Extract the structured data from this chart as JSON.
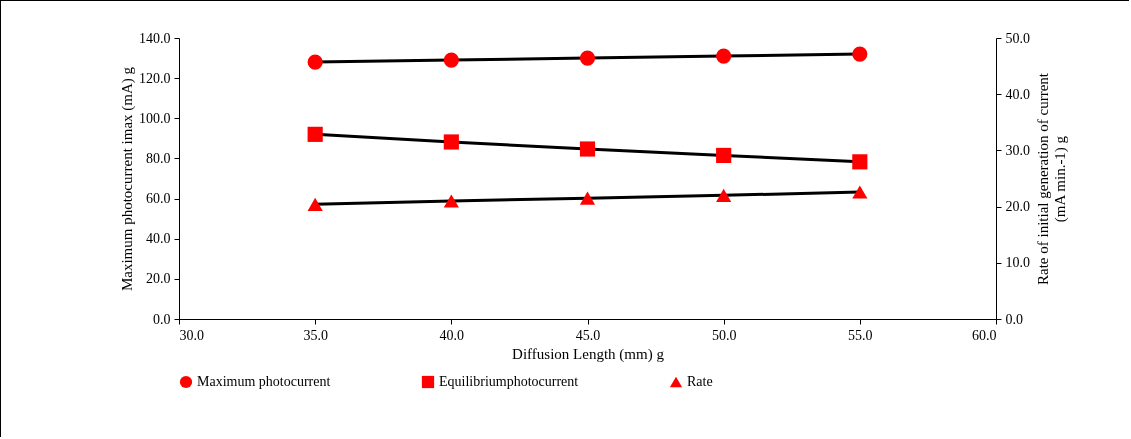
{
  "chart_data": {
    "type": "line",
    "xlabel": "Diffusion Length (mm) g",
    "ylabel": "Maximum photocurrent imax (mA) g",
    "y2label": "Rate of initial generation of current\n(mA min.-1) g",
    "x": [
      35,
      40,
      45,
      50,
      55
    ],
    "series": [
      {
        "name": "Maximum photocurrent",
        "color": "#ff0000",
        "marker": "circle",
        "values": [
          128,
          129,
          130,
          131,
          132
        ]
      },
      {
        "name": "Equilibriumphotocurrent",
        "color": "#ff0000",
        "marker": "square",
        "values": [
          92,
          88.2,
          84.7,
          81.5,
          78.3
        ]
      },
      {
        "name": "Rate",
        "color": "#ff0000",
        "marker": "triangle",
        "axis": "y2",
        "values": [
          20.4,
          21,
          21.5,
          22,
          22.6
        ]
      }
    ],
    "xlim": [
      30,
      60
    ],
    "xticks": [
      {
        "value": 30,
        "label": "30.0"
      },
      {
        "value": 35,
        "label": "35.0"
      },
      {
        "value": 40,
        "label": "40.0"
      },
      {
        "value": 45,
        "label": "45.0"
      },
      {
        "value": 50,
        "label": "50.0"
      },
      {
        "value": 55,
        "label": "55.0"
      },
      {
        "value": 60,
        "label": "60.0"
      }
    ],
    "ylim": [
      0,
      140
    ],
    "yticks": [
      {
        "value": 0,
        "label": "0.0"
      },
      {
        "value": 20,
        "label": "20.0"
      },
      {
        "value": 40,
        "label": "40.0"
      },
      {
        "value": 60,
        "label": "60.0"
      },
      {
        "value": 80,
        "label": "80.0"
      },
      {
        "value": 100,
        "label": "100.0"
      },
      {
        "value": 120,
        "label": "120.0"
      },
      {
        "value": 140,
        "label": "140.0"
      }
    ],
    "y2lim": [
      0,
      50
    ],
    "y2ticks": [
      {
        "value": 0,
        "label": "0.0"
      },
      {
        "value": 10,
        "label": "10.0"
      },
      {
        "value": 20,
        "label": "20.0"
      },
      {
        "value": 30,
        "label": "30.0"
      },
      {
        "value": 40,
        "label": "40.0"
      },
      {
        "value": 50,
        "label": "50.0"
      }
    ],
    "legend": "bottom",
    "line_style": "solid"
  }
}
